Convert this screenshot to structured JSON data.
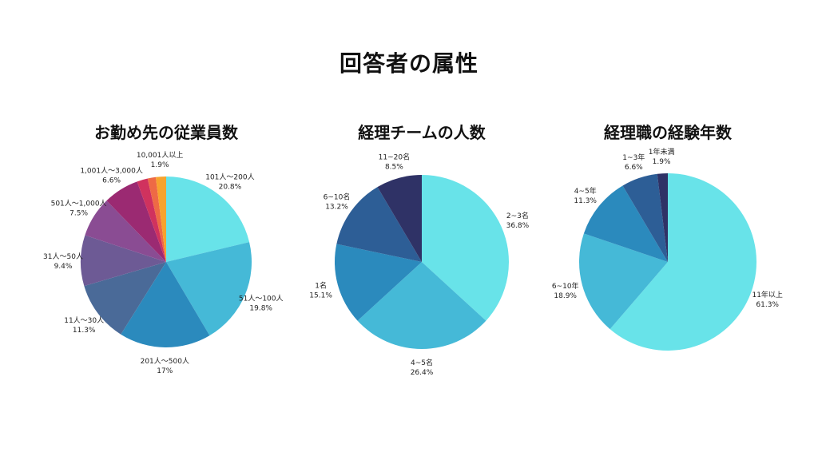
{
  "page": {
    "title": "回答者の属性"
  },
  "chart_data": [
    {
      "type": "pie",
      "title": "お勤め先の従業員数",
      "slices": [
        {
          "label": "101人〜200人",
          "value_text": "20.8%",
          "value": 20.8,
          "color": "#68E3E9"
        },
        {
          "label": "51人〜100人",
          "value_text": "19.8%",
          "value": 19.8,
          "color": "#45B9D7"
        },
        {
          "label": "201人〜500人",
          "value_text": "17%",
          "value": 17.0,
          "color": "#2B8ABD"
        },
        {
          "label": "11人〜30人",
          "value_text": "11.3%",
          "value": 11.3,
          "color": "#4A6A98"
        },
        {
          "label": "31人〜50人",
          "value_text": "9.4%",
          "value": 9.4,
          "color": "#6D5A95"
        },
        {
          "label": "501人〜1,000人",
          "value_text": "7.5%",
          "value": 7.5,
          "color": "#8A4C93"
        },
        {
          "label": "1,001人〜3,000人",
          "value_text": "6.6%",
          "value": 6.6,
          "color": "#9B2A72"
        },
        {
          "label": "",
          "value_text": "",
          "value": 2.0,
          "color": "#D0325E"
        },
        {
          "label": "",
          "value_text": "",
          "value": 1.5,
          "color": "#EE6A45"
        },
        {
          "label": "10,001人以上",
          "value_text": "1.9%",
          "value": 1.9,
          "color": "#F7A32E"
        }
      ]
    },
    {
      "type": "pie",
      "title": "経理チームの人数",
      "slices": [
        {
          "label": "2~3名",
          "value_text": "36.8%",
          "value": 36.8,
          "color": "#68E3E9"
        },
        {
          "label": "4~5名",
          "value_text": "26.4%",
          "value": 26.4,
          "color": "#45B9D7"
        },
        {
          "label": "1名",
          "value_text": "15.1%",
          "value": 15.1,
          "color": "#2B8ABD"
        },
        {
          "label": "6~10名",
          "value_text": "13.2%",
          "value": 13.2,
          "color": "#2D5E96"
        },
        {
          "label": "11~20名",
          "value_text": "8.5%",
          "value": 8.5,
          "color": "#2F3266"
        }
      ]
    },
    {
      "type": "pie",
      "title": "経理職の経験年数",
      "slices": [
        {
          "label": "11年以上",
          "value_text": "61.3%",
          "value": 61.3,
          "color": "#68E3E9"
        },
        {
          "label": "6~10年",
          "value_text": "18.9%",
          "value": 18.9,
          "color": "#45B9D7"
        },
        {
          "label": "4~5年",
          "value_text": "11.3%",
          "value": 11.3,
          "color": "#2B8ABD"
        },
        {
          "label": "1~3年",
          "value_text": "6.6%",
          "value": 6.6,
          "color": "#2D5E96"
        },
        {
          "label": "1年未満",
          "value_text": "1.9%",
          "value": 1.9,
          "color": "#2F3266"
        }
      ]
    }
  ]
}
